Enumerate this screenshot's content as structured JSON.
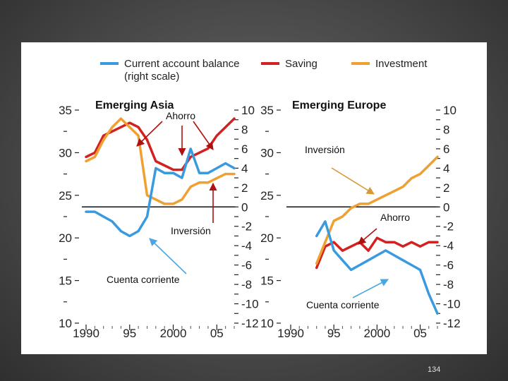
{
  "page_number": "134",
  "colors": {
    "current_account": "#3a9ae0",
    "saving": "#d42020",
    "investment": "#f0a030",
    "arrow_red": "#b01010",
    "arrow_blue": "#49a6e0",
    "arrow_orange": "#d49a3a"
  },
  "legend": [
    {
      "key": "current_account",
      "label": "Current account balance",
      "label2": "(right scale)"
    },
    {
      "key": "saving",
      "label": "Saving"
    },
    {
      "key": "investment",
      "label": "Investment"
    }
  ],
  "chart_data": [
    {
      "type": "line",
      "title": "Emerging Asia",
      "x_ticks": [
        "1990",
        "95",
        "2000",
        "05"
      ],
      "x_range": [
        1990,
        2007
      ],
      "left_axis": {
        "range": [
          10,
          35
        ],
        "ticks": [
          "35",
          "30",
          "25",
          "20",
          "15",
          "10"
        ]
      },
      "right_axis": {
        "range": [
          -12,
          10
        ],
        "ticks": [
          "10",
          "8",
          "6",
          "4",
          "2",
          "0",
          "-2",
          "-4",
          "-6",
          "-8",
          "-10",
          "-12"
        ]
      },
      "series": [
        {
          "name": "Saving",
          "axis": "left",
          "x": [
            1990,
            1991,
            1992,
            1993,
            1994,
            1995,
            1996,
            1997,
            1998,
            1999,
            2000,
            2001,
            2002,
            2003,
            2004,
            2005,
            2006,
            2007
          ],
          "values": [
            29.5,
            30.0,
            32.0,
            32.5,
            33.0,
            33.5,
            33.0,
            31.5,
            29.0,
            28.5,
            28.0,
            28.0,
            29.5,
            30.0,
            30.5,
            32.0,
            33.0,
            34.0
          ]
        },
        {
          "name": "Investment",
          "axis": "left",
          "x": [
            1990,
            1991,
            1992,
            1993,
            1994,
            1995,
            1996,
            1997,
            1998,
            1999,
            2000,
            2001,
            2002,
            2003,
            2004,
            2005,
            2006,
            2007
          ],
          "values": [
            29.0,
            29.5,
            31.5,
            33.0,
            34.0,
            33.0,
            32.0,
            25.0,
            24.5,
            24.0,
            24.0,
            24.5,
            26.0,
            26.5,
            26.5,
            27.0,
            27.5,
            27.5
          ]
        },
        {
          "name": "Current account balance",
          "axis": "right",
          "x": [
            1990,
            1991,
            1992,
            1993,
            1994,
            1995,
            1996,
            1997,
            1998,
            1999,
            2000,
            2001,
            2002,
            2003,
            2004,
            2005,
            2006,
            2007
          ],
          "values": [
            -0.5,
            -0.5,
            -1.0,
            -1.5,
            -2.5,
            -3.0,
            -2.5,
            -1.0,
            4.0,
            3.5,
            3.5,
            3.0,
            6.0,
            3.5,
            3.5,
            4.0,
            4.5,
            4.0
          ]
        }
      ],
      "annotations": [
        {
          "text": "Ahorro",
          "series": "saving"
        },
        {
          "text": "Inversión",
          "series": "investment"
        },
        {
          "text": "Cuenta corriente",
          "series": "current_account"
        }
      ]
    },
    {
      "type": "line",
      "title": "Emerging Europe",
      "x_ticks": [
        "1990",
        "95",
        "2000",
        "05"
      ],
      "x_range": [
        1990,
        2007
      ],
      "left_axis": {
        "range": [
          10,
          35
        ],
        "ticks": [
          "35",
          "30",
          "25",
          "20",
          "15",
          "10"
        ]
      },
      "right_axis": {
        "range": [
          -12,
          10
        ],
        "ticks": [
          "10",
          "8",
          "6",
          "4",
          "2",
          "0",
          "-2",
          "-4",
          "-6",
          "-8",
          "-10",
          "-12"
        ]
      },
      "series": [
        {
          "name": "Saving",
          "axis": "left",
          "x": [
            1993,
            1994,
            1995,
            1996,
            1997,
            1998,
            1999,
            2000,
            2001,
            2002,
            2003,
            2004,
            2005,
            2006,
            2007
          ],
          "values": [
            16.5,
            19.0,
            19.5,
            18.5,
            19.0,
            19.5,
            18.5,
            20.0,
            19.5,
            19.5,
            19.0,
            19.5,
            19.0,
            19.5,
            19.5
          ]
        },
        {
          "name": "Investment",
          "axis": "left",
          "x": [
            1993,
            1994,
            1995,
            1996,
            1997,
            1998,
            1999,
            2000,
            2001,
            2002,
            2003,
            2004,
            2005,
            2006,
            2007
          ],
          "values": [
            17.0,
            19.5,
            22.0,
            22.5,
            23.5,
            24.0,
            24.0,
            24.5,
            25.0,
            25.5,
            26.0,
            27.0,
            27.5,
            28.5,
            29.5
          ]
        },
        {
          "name": "Current account balance",
          "axis": "right",
          "x": [
            1993,
            1994,
            1995,
            1996,
            1997,
            1998,
            1999,
            2000,
            2001,
            2002,
            2003,
            2004,
            2005,
            2006,
            2007
          ],
          "values": [
            -3.0,
            -1.5,
            -4.5,
            -5.5,
            -6.5,
            -6.0,
            -5.5,
            -5.0,
            -4.5,
            -5.0,
            -5.5,
            -6.0,
            -6.5,
            -9.0,
            -11.0
          ]
        }
      ],
      "annotations": [
        {
          "text": "Inversión",
          "series": "investment"
        },
        {
          "text": "Ahorro",
          "series": "saving"
        },
        {
          "text": "Cuenta corriente",
          "series": "current_account"
        }
      ]
    }
  ]
}
